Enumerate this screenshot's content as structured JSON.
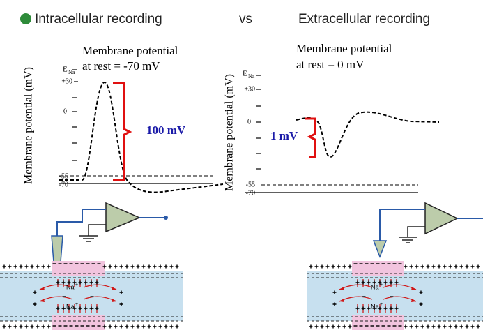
{
  "header": {
    "left_title": "Intracellular recording",
    "vs": "vs",
    "right_title": "Extracellular recording"
  },
  "left_panel": {
    "caption_line1": "Membrane potential",
    "caption_line2": "at rest = -70 mV",
    "y_axis_label": "Membrane potential (mV)",
    "e_label": "E",
    "e_subscript": "Na",
    "ticks": [
      "+30",
      "0",
      "-55",
      "-70"
    ],
    "amplitude_label": "100 mV",
    "ion_label": "Na",
    "ion_charge": "+"
  },
  "right_panel": {
    "caption_line1": "Membrane potential",
    "caption_line2": "at rest = 0 mV",
    "y_axis_label": "Membrane potential (mV)",
    "e_label": "E",
    "e_subscript": "Na",
    "ticks": [
      "+30",
      "0",
      "-55",
      "-70"
    ],
    "amplitude_label": "1 mV",
    "ion_label": "Na",
    "ion_charge": "+"
  }
}
